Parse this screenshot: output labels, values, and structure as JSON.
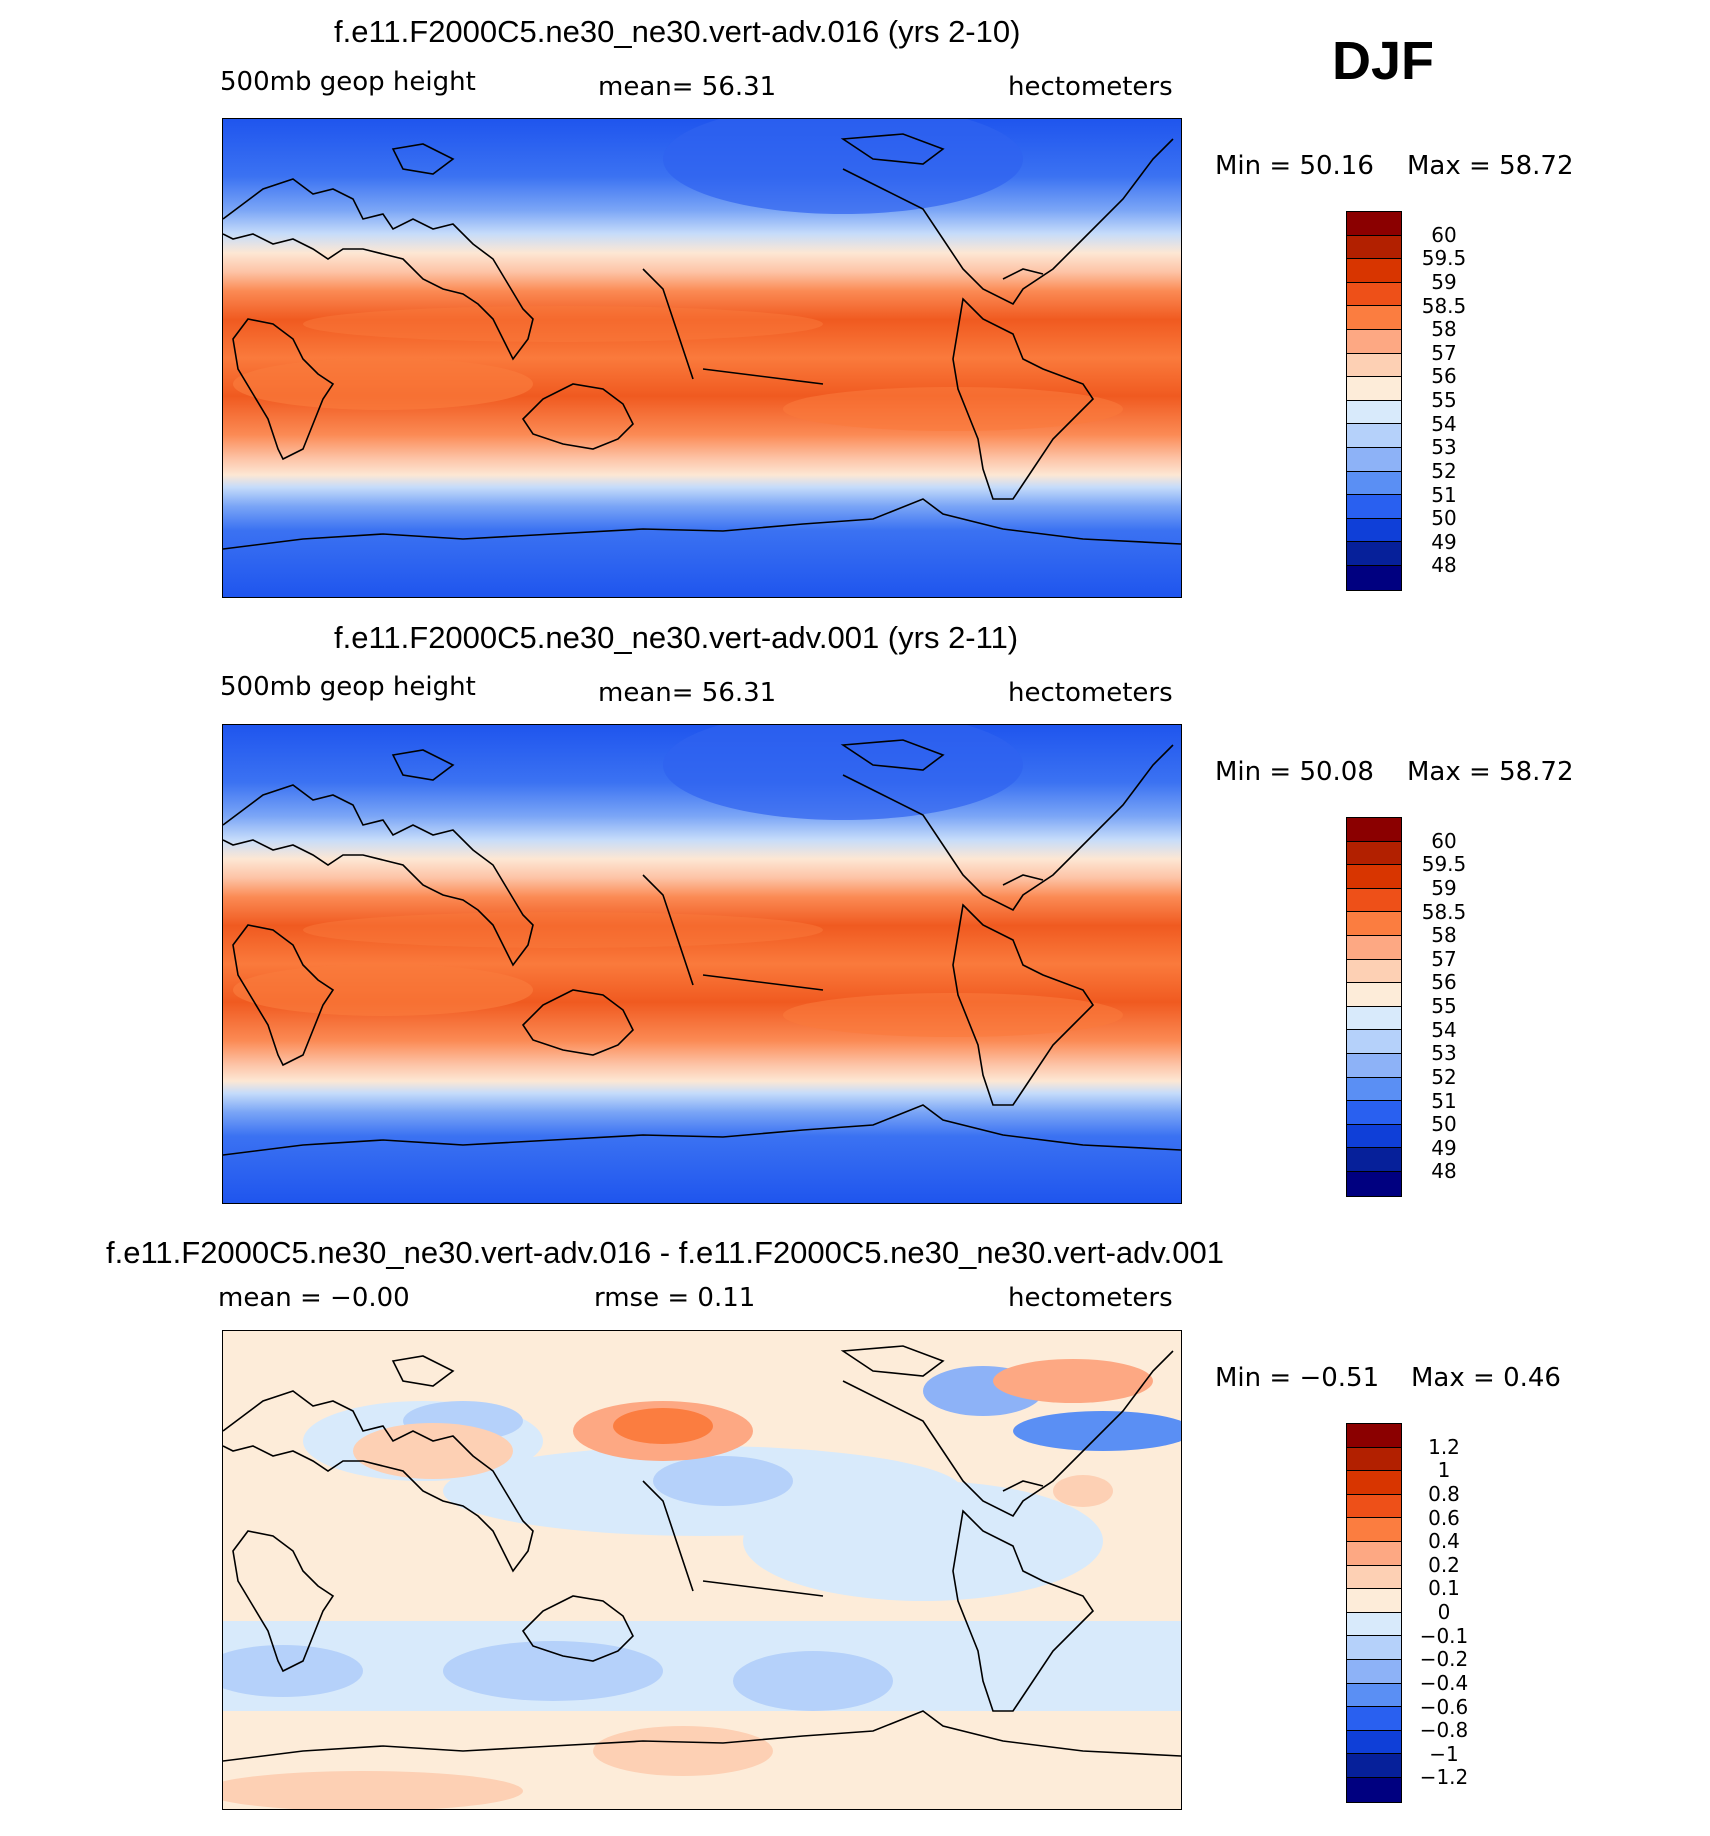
{
  "season": "DJF",
  "panels": [
    {
      "title": "f.e11.F2000C5.ne30_ne30.vert-adv.016 (yrs 2-10)",
      "left_label": "500mb geop height",
      "center_label": "mean=  56.31",
      "units": "hectometers",
      "min_text": "Min =   50.16",
      "max_text": "Max =   58.72",
      "colorbar_labels": [
        "60",
        "59.5",
        "59",
        "58.5",
        "58",
        "57",
        "56",
        "55",
        "54",
        "53",
        "52",
        "51",
        "50",
        "49",
        "48"
      ]
    },
    {
      "title": "f.e11.F2000C5.ne30_ne30.vert-adv.001 (yrs 2-11)",
      "left_label": "500mb geop height",
      "center_label": "mean=  56.31",
      "units": "hectometers",
      "min_text": "Min =   50.08",
      "max_text": "Max =   58.72",
      "colorbar_labels": [
        "60",
        "59.5",
        "59",
        "58.5",
        "58",
        "57",
        "56",
        "55",
        "54",
        "53",
        "52",
        "51",
        "50",
        "49",
        "48"
      ]
    },
    {
      "title": "f.e11.F2000C5.ne30_ne30.vert-adv.016 - f.e11.F2000C5.ne30_ne30.vert-adv.001",
      "left_label": "mean =  −0.00",
      "center_label": "rmse =    0.11",
      "units": "hectometers",
      "min_text": "Min =  −0.51",
      "max_text": "Max =    0.46",
      "colorbar_labels": [
        "1.2",
        "1",
        "0.8",
        "0.6",
        "0.4",
        "0.2",
        "0.1",
        "0",
        "−0.1",
        "−0.2",
        "−0.4",
        "−0.6",
        "−0.8",
        "−1",
        "−1.2"
      ]
    }
  ],
  "colors": {
    "abs_colorbar": [
      "#8b0000",
      "#b22000",
      "#d83500",
      "#ee5018",
      "#fb7d40",
      "#fda883",
      "#fdd0b4",
      "#fdecd9",
      "#d8eafb",
      "#b5d1fa",
      "#8db2f7",
      "#5a8ff4",
      "#2960f0",
      "#0f3fd8",
      "#06209a",
      "#000080"
    ],
    "diff_colorbar": [
      "#8b0000",
      "#b22000",
      "#d83500",
      "#ee5018",
      "#fb7d40",
      "#fda883",
      "#fdd0b4",
      "#fdecd9",
      "#d8eafb",
      "#b5d1fa",
      "#8db2f7",
      "#5a8ff4",
      "#2960f0",
      "#0f3fd8",
      "#06209a",
      "#000080"
    ]
  },
  "chart_data": [
    {
      "type": "heatmap",
      "title": "f.e11.F2000C5.ne30_ne30.vert-adv.016 (yrs 2-10)",
      "variable": "500mb geop height",
      "units": "hectometers",
      "mean": 56.31,
      "min": 50.16,
      "max": 58.72,
      "contour_levels": [
        48,
        49,
        50,
        51,
        52,
        53,
        54,
        55,
        56,
        57,
        58,
        58.5,
        59,
        59.5,
        60
      ],
      "zonal_profile": {
        "lat": [
          90,
          80,
          70,
          60,
          50,
          45,
          40,
          35,
          30,
          20,
          10,
          0,
          -10,
          -20,
          -30,
          -35,
          -40,
          -45,
          -50,
          -60,
          -70,
          -80,
          -90
        ],
        "value": [
          50.4,
          50.6,
          51.0,
          52.0,
          53.6,
          54.6,
          55.5,
          56.3,
          57.2,
          58.2,
          58.4,
          58.3,
          58.4,
          58.4,
          57.6,
          56.6,
          55.0,
          53.3,
          51.6,
          50.6,
          50.3,
          50.2,
          50.2
        ]
      }
    },
    {
      "type": "heatmap",
      "title": "f.e11.F2000C5.ne30_ne30.vert-adv.001 (yrs 2-11)",
      "variable": "500mb geop height",
      "units": "hectometers",
      "mean": 56.31,
      "min": 50.08,
      "max": 58.72,
      "contour_levels": [
        48,
        49,
        50,
        51,
        52,
        53,
        54,
        55,
        56,
        57,
        58,
        58.5,
        59,
        59.5,
        60
      ],
      "zonal_profile": {
        "lat": [
          90,
          80,
          70,
          60,
          50,
          45,
          40,
          35,
          30,
          20,
          10,
          0,
          -10,
          -20,
          -30,
          -35,
          -40,
          -45,
          -50,
          -60,
          -70,
          -80,
          -90
        ],
        "value": [
          50.4,
          50.6,
          51.0,
          52.0,
          53.6,
          54.6,
          55.5,
          56.3,
          57.2,
          58.2,
          58.4,
          58.3,
          58.4,
          58.4,
          57.6,
          56.6,
          55.0,
          53.3,
          51.6,
          50.6,
          50.3,
          50.2,
          50.1
        ]
      }
    },
    {
      "type": "heatmap",
      "title": "f.e11.F2000C5.ne30_ne30.vert-adv.016 - f.e11.F2000C5.ne30_ne30.vert-adv.001",
      "units": "hectometers",
      "mean": -0.0,
      "rmse": 0.11,
      "min": -0.51,
      "max": 0.46,
      "contour_levels": [
        -1.2,
        -1,
        -0.8,
        -0.6,
        -0.4,
        -0.2,
        -0.1,
        0,
        0.1,
        0.2,
        0.4,
        0.6,
        0.8,
        1,
        1.2
      ],
      "zonal_profile": {
        "lat": [
          90,
          70,
          50,
          30,
          10,
          -10,
          -30,
          -50,
          -70,
          -90
        ],
        "value": [
          0.05,
          -0.05,
          0.05,
          -0.05,
          0.02,
          0.02,
          -0.1,
          -0.1,
          0.05,
          0.05
        ]
      }
    }
  ]
}
